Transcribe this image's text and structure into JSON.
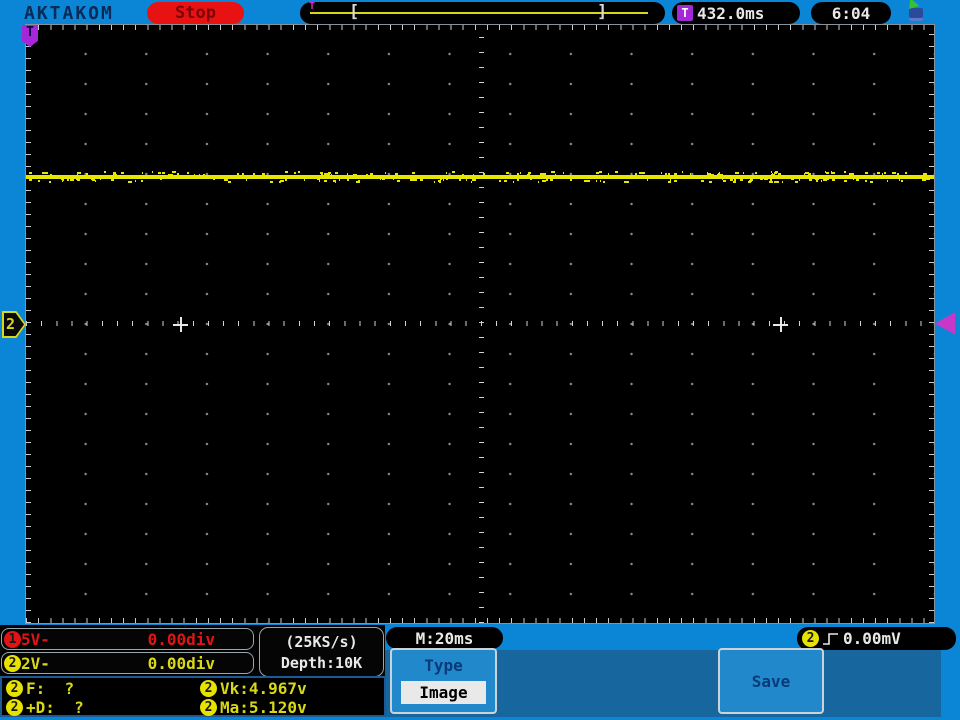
{
  "brand": "AKTAKOM",
  "top_bar": {
    "run_state": "Stop",
    "trigger_position_marker": "T",
    "window_left_bracket": "[",
    "window_right_bracket": "]",
    "trigger_badge": "T",
    "trigger_time": "432.0ms",
    "clock": "6:04",
    "usb_icon": "usb-device-icon"
  },
  "graticule": {
    "corner_trigger_label": "T",
    "channel2_marker_label": "2",
    "trace": {
      "channel": 2,
      "shape": "flat-noisy-line",
      "level_divisions_above_reference": 2.5,
      "color": "#e6e600"
    }
  },
  "status": {
    "channel1": {
      "badge": "1",
      "scale": "5V-",
      "position": "0.00div",
      "color": "#e01414"
    },
    "channel2": {
      "badge": "2",
      "scale": "2V-",
      "position": "0.00div",
      "color": "#d8d818"
    },
    "sample_rate": "(25KS/s)",
    "depth": "Depth:10K",
    "timebase": "M:20ms",
    "trigger_level": {
      "badge": "2",
      "edge": "rising",
      "value": "0.00mV"
    }
  },
  "measurements": {
    "f": {
      "badge": "2",
      "text": "F:  ?"
    },
    "vk": {
      "badge": "2",
      "text": "Vk:4.967v"
    },
    "d": {
      "badge": "2",
      "text": "+D:  ?"
    },
    "ma": {
      "badge": "2",
      "text": "Ma:5.120v"
    }
  },
  "menu": {
    "group_title": "Type",
    "selected_option": "Image",
    "save_button": "Save"
  },
  "colors": {
    "background": "#0b86d6",
    "menu_row": "#17669e",
    "soft_panel": "#2288cc",
    "accent_yellow": "#d8d818",
    "accent_red": "#e01414",
    "trigger_purple": "#a428d8",
    "trace_yellow": "#e6e600"
  }
}
